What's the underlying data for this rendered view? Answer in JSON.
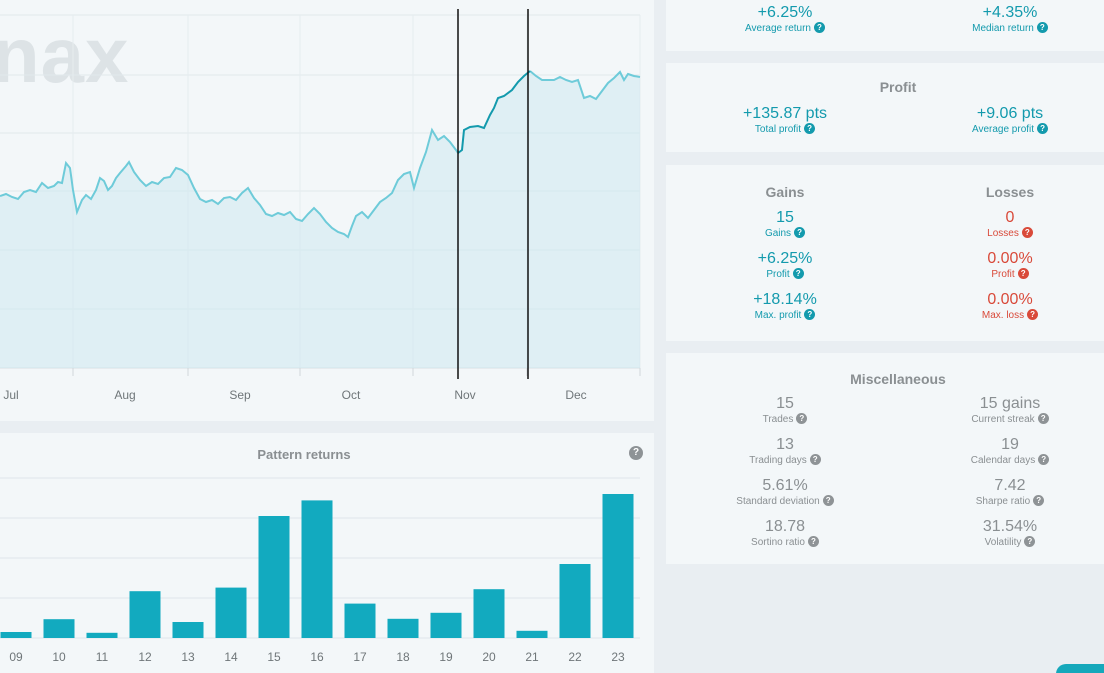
{
  "price_chart": {
    "watermark": "nax",
    "x_labels": [
      "Jul",
      "Aug",
      "Sep",
      "Oct",
      "Nov",
      "Dec"
    ],
    "selection": {
      "start": "Nov",
      "end": "mid-Nov"
    },
    "series_color": "#6ecbd9",
    "highlight_color": "#139aad"
  },
  "pattern_returns": {
    "title": "Pattern returns",
    "help": "?",
    "chart_data": {
      "type": "bar",
      "categories": [
        "09",
        "10",
        "11",
        "12",
        "13",
        "14",
        "15",
        "16",
        "17",
        "18",
        "19",
        "20",
        "21",
        "22",
        "23"
      ],
      "values": [
        0.15,
        0.47,
        0.13,
        1.17,
        0.4,
        1.26,
        3.05,
        3.44,
        0.86,
        0.48,
        0.63,
        1.22,
        0.18,
        1.85,
        3.6
      ],
      "ylim": [
        0,
        4
      ],
      "xlabel": "",
      "ylabel": "",
      "color": "#12aabf",
      "grid": true
    }
  },
  "returns_card": {
    "average_return": {
      "value": "+6.25%",
      "label": "Average return"
    },
    "median_return": {
      "value": "+4.35%",
      "label": "Median return"
    }
  },
  "profit_card": {
    "title": "Profit",
    "total_profit": {
      "value": "+135.87 pts",
      "label": "Total profit"
    },
    "average_profit": {
      "value": "+9.06 pts",
      "label": "Average profit"
    }
  },
  "gains_losses_card": {
    "gains_title": "Gains",
    "losses_title": "Losses",
    "gains": [
      {
        "value": "15",
        "label": "Gains"
      },
      {
        "value": "+6.25%",
        "label": "Profit"
      },
      {
        "value": "+18.14%",
        "label": "Max. profit"
      }
    ],
    "losses": [
      {
        "value": "0",
        "label": "Losses"
      },
      {
        "value": "0.00%",
        "label": "Profit"
      },
      {
        "value": "0.00%",
        "label": "Max. loss"
      }
    ]
  },
  "misc_card": {
    "title": "Miscellaneous",
    "left": [
      {
        "value": "15",
        "label": "Trades"
      },
      {
        "value": "13",
        "label": "Trading days"
      },
      {
        "value": "5.61%",
        "label": "Standard deviation"
      },
      {
        "value": "18.78",
        "label": "Sortino ratio"
      }
    ],
    "right": [
      {
        "value": "15 gains",
        "label": "Current streak"
      },
      {
        "value": "19",
        "label": "Calendar days"
      },
      {
        "value": "7.42",
        "label": "Sharpe ratio"
      },
      {
        "value": "31.54%",
        "label": "Volatility"
      }
    ]
  },
  "colors": {
    "teal": "#139aad",
    "red": "#d94a3a",
    "grey": "#8a8f92"
  }
}
